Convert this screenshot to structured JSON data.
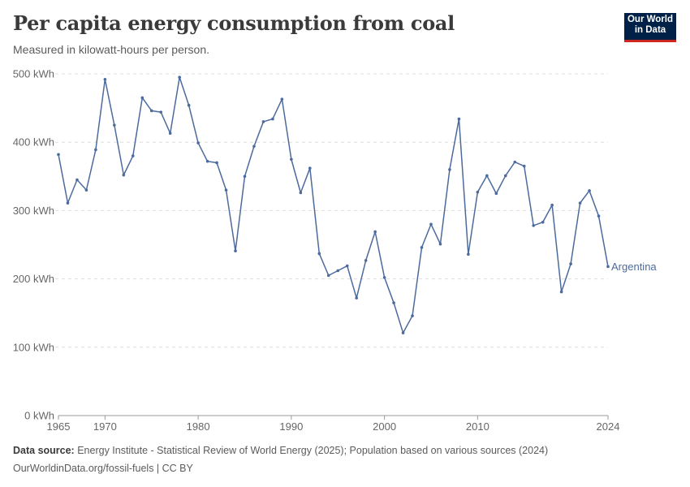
{
  "header": {
    "title": "Per capita energy consumption from coal",
    "subtitle": "Measured in kilowatt-hours per person.",
    "logo_line1": "Our World",
    "logo_line2": "in Data"
  },
  "footer": {
    "source_label": "Data source:",
    "source_text": " Energy Institute - Statistical Review of World Energy (2025); Population based on various sources (2024)",
    "link_text": "OurWorldinData.org/fossil-fuels | CC BY"
  },
  "colors": {
    "series": "#4c6a9c",
    "grid": "#dddddd",
    "axis": "#999999",
    "logo_bg": "#002147",
    "logo_accent": "#ce261e"
  },
  "chart_data": {
    "type": "line",
    "title": "Per capita energy consumption from coal",
    "subtitle": "Measured in kilowatt-hours per person.",
    "ylim": [
      0,
      500
    ],
    "xlim": [
      1965,
      2024
    ],
    "y_ticks": [
      {
        "value": 0,
        "label": "0 kWh"
      },
      {
        "value": 100,
        "label": "100 kWh"
      },
      {
        "value": 200,
        "label": "200 kWh"
      },
      {
        "value": 300,
        "label": "300 kWh"
      },
      {
        "value": 400,
        "label": "400 kWh"
      },
      {
        "value": 500,
        "label": "500 kWh"
      }
    ],
    "x_ticks": [
      {
        "value": 1965,
        "label": "1965"
      },
      {
        "value": 1970,
        "label": "1970"
      },
      {
        "value": 1980,
        "label": "1980"
      },
      {
        "value": 1990,
        "label": "1990"
      },
      {
        "value": 2000,
        "label": "2000"
      },
      {
        "value": 2010,
        "label": "2010"
      },
      {
        "value": 2024,
        "label": "2024"
      }
    ],
    "grid": true,
    "legend": "end-of-line label",
    "series": [
      {
        "name": "Argentina",
        "x": [
          1965,
          1966,
          1967,
          1968,
          1969,
          1970,
          1971,
          1972,
          1973,
          1974,
          1975,
          1976,
          1977,
          1978,
          1979,
          1980,
          1981,
          1982,
          1983,
          1984,
          1985,
          1986,
          1987,
          1988,
          1989,
          1990,
          1991,
          1992,
          1993,
          1994,
          1995,
          1996,
          1997,
          1998,
          1999,
          2000,
          2001,
          2002,
          2003,
          2004,
          2005,
          2006,
          2007,
          2008,
          2009,
          2010,
          2011,
          2012,
          2013,
          2014,
          2015,
          2016,
          2017,
          2018,
          2019,
          2020,
          2021,
          2022,
          2023,
          2024
        ],
        "values": [
          382,
          311,
          345,
          330,
          389,
          492,
          425,
          352,
          380,
          465,
          446,
          444,
          413,
          495,
          454,
          399,
          372,
          370,
          330,
          241,
          350,
          394,
          430,
          434,
          463,
          375,
          326,
          362,
          237,
          205,
          212,
          219,
          172,
          227,
          269,
          202,
          165,
          121,
          146,
          246,
          280,
          251,
          360,
          434,
          236,
          327,
          351,
          325,
          351,
          371,
          365,
          278,
          283,
          308,
          181,
          222,
          311,
          329,
          292,
          218
        ]
      }
    ]
  }
}
